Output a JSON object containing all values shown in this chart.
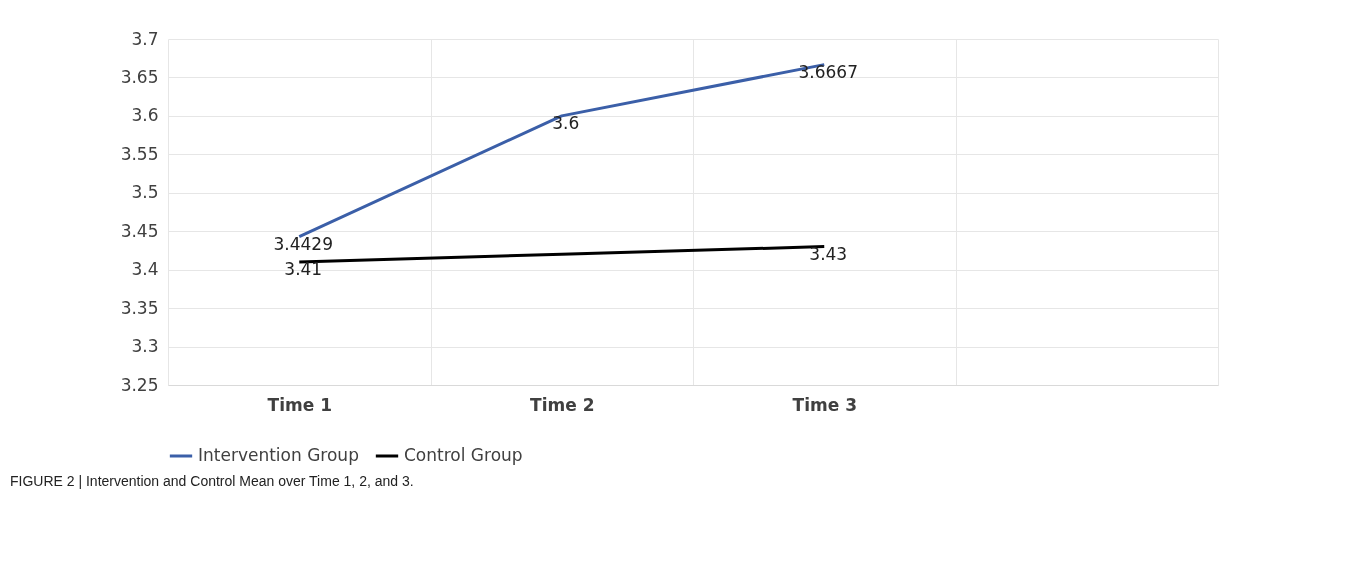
{
  "chart_data": {
    "type": "line",
    "categories": [
      "Time 1",
      "Time 2",
      "Time 3",
      null
    ],
    "series": [
      {
        "name": "Intervention Group",
        "color": "#3b5fa8",
        "values": [
          3.4429,
          3.6,
          3.6667,
          null
        ],
        "value_labels": [
          "3.4429",
          "3.6",
          "3.6667",
          null
        ]
      },
      {
        "name": "Control Group",
        "color": "#000000",
        "values": [
          3.41,
          3.42,
          3.43,
          null
        ],
        "value_labels": [
          "3.41",
          null,
          "3.43",
          null
        ]
      }
    ],
    "ylim": [
      3.25,
      3.7
    ],
    "yticks": [
      3.25,
      3.3,
      3.35,
      3.4,
      3.45,
      3.5,
      3.55,
      3.6,
      3.65,
      3.7
    ],
    "grid": true,
    "legend": "bottom",
    "marker": "none",
    "line_style": "solid",
    "annotations": [
      "FIGURE 2 | Intervention and Control Mean over Time 1, 2, and 3."
    ]
  }
}
